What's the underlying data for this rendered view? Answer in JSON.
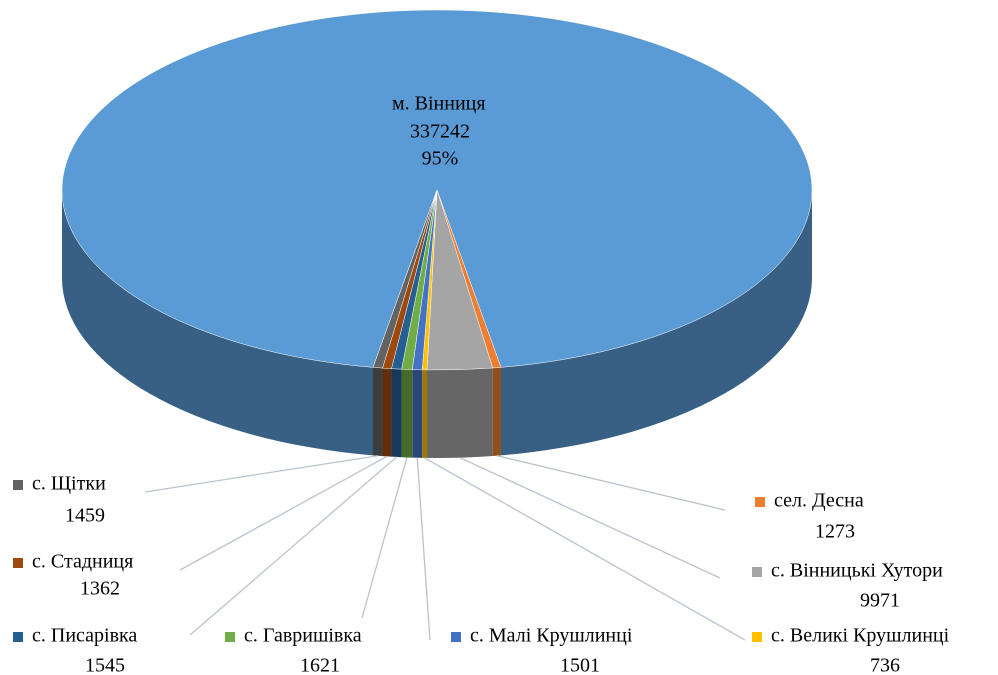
{
  "chart_data": {
    "type": "pie",
    "categories": [
      "м. Вінниця",
      "сел. Десна",
      "с. Вінницькі Хутори",
      "с. Великі Крушлинці",
      "с. Малі Крушлинці",
      "с. Гавришівка",
      "с. Писарівка",
      "с. Стадниця",
      "с. Щітки"
    ],
    "values": [
      337242,
      1273,
      9971,
      736,
      1501,
      1621,
      1545,
      1362,
      1459
    ],
    "percent_labels": [
      "95%",
      null,
      null,
      null,
      null,
      null,
      null,
      null,
      null
    ],
    "colors": [
      "#5b9bd5",
      "#ed7d31",
      "#a5a5a5",
      "#ffc000",
      "#4472c4",
      "#70ad47",
      "#255e91",
      "#9e480e",
      "#636363"
    ],
    "three_d": true
  }
}
